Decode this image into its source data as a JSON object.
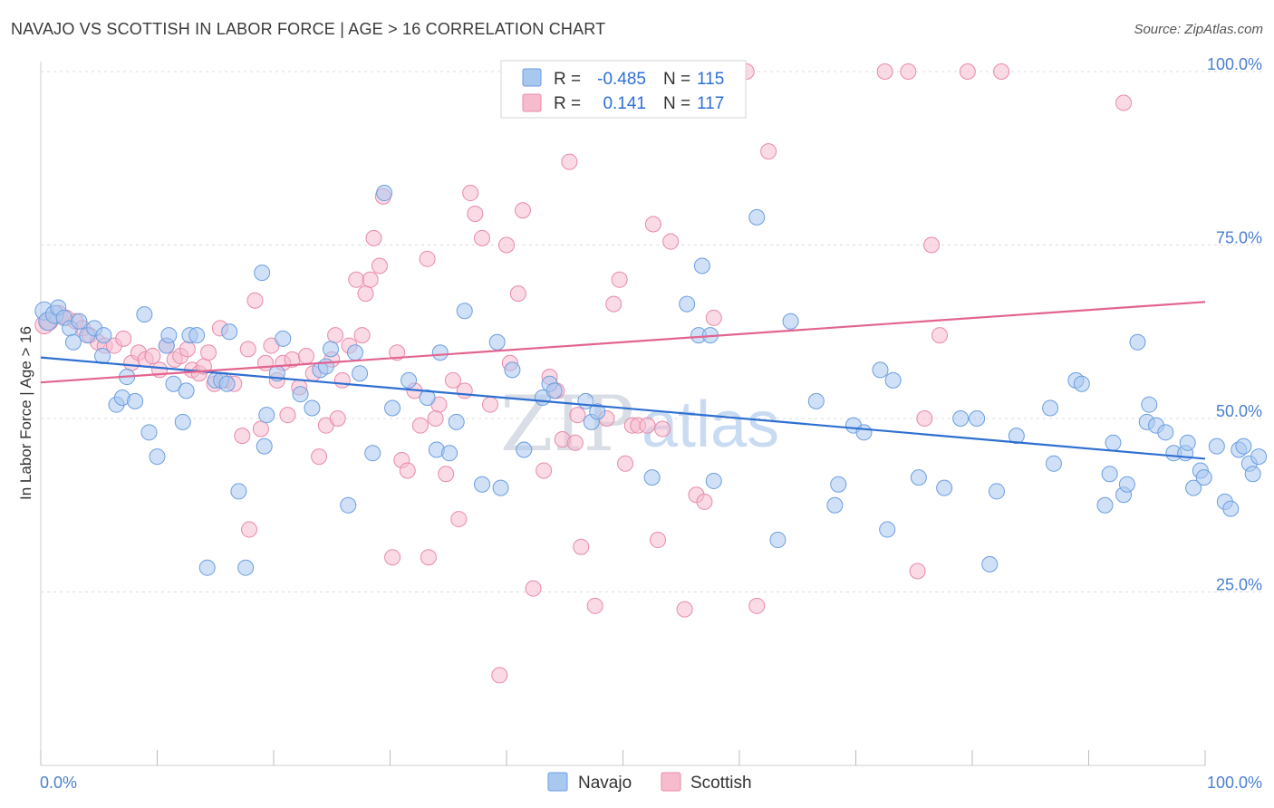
{
  "title": "NAVAJO VS SCOTTISH IN LABOR FORCE | AGE > 16 CORRELATION CHART",
  "source": "Source: ZipAtlas.com",
  "watermark": {
    "part1": "ZIP",
    "part2": "atlas"
  },
  "colors": {
    "navajo_fill": "#a9c8f0",
    "navajo_stroke": "#6b9ee0",
    "navajo_line": "#2e6fd1",
    "scottish_fill": "#f6bccd",
    "scottish_stroke": "#e98aa9",
    "scottish_line": "#e2648f",
    "grid": "#dcdcdc",
    "tick_label": "#4a7fd0"
  },
  "legend": {
    "navajo": {
      "r_label": "R =",
      "r_value": "-0.485",
      "n_label": "N =",
      "n_value": "115"
    },
    "scottish": {
      "r_label": "R =",
      "r_value": "0.141",
      "n_label": "N =",
      "n_value": "117"
    }
  },
  "bottom_legend": {
    "navajo": "Navajo",
    "scottish": "Scottish"
  },
  "chart_data": {
    "type": "scatter",
    "title": "NAVAJO VS SCOTTISH IN LABOR FORCE | AGE > 16 CORRELATION CHART",
    "xlabel": "",
    "ylabel": "In Labor Force | Age > 16",
    "xlim": [
      0,
      100
    ],
    "ylim": [
      0,
      103
    ],
    "x_tick_labels": [
      "0.0%",
      "100.0%"
    ],
    "y_ticks": [
      25,
      50,
      75,
      100
    ],
    "y_tick_labels": [
      "25.0%",
      "50.0%",
      "75.0%",
      "100.0%"
    ],
    "grid": true,
    "legend_position": "top-center",
    "series": [
      {
        "name": "Navajo",
        "R": -0.485,
        "N": 115,
        "trend": {
          "x": [
            0,
            100
          ],
          "y": [
            58.8,
            44.2
          ]
        },
        "points": [
          [
            0.3,
            65.5
          ],
          [
            0.6,
            64
          ],
          [
            1.2,
            65
          ],
          [
            1.5,
            66
          ],
          [
            2,
            64.5
          ],
          [
            2.5,
            63
          ],
          [
            2.8,
            61
          ],
          [
            3.3,
            64
          ],
          [
            4,
            62
          ],
          [
            4.6,
            63
          ],
          [
            5.3,
            59
          ],
          [
            5.4,
            62
          ],
          [
            7.4,
            56
          ],
          [
            6.5,
            52
          ],
          [
            7,
            53
          ],
          [
            8.1,
            52.5
          ],
          [
            8.9,
            65
          ],
          [
            9.3,
            48
          ],
          [
            10,
            44.5
          ],
          [
            10.8,
            60.5
          ],
          [
            11,
            62
          ],
          [
            11.4,
            55
          ],
          [
            12.2,
            49.5
          ],
          [
            12.5,
            54
          ],
          [
            12.8,
            62
          ],
          [
            13.4,
            62
          ],
          [
            14.3,
            28.5
          ],
          [
            15,
            55.5
          ],
          [
            15.5,
            55.5
          ],
          [
            16,
            55
          ],
          [
            16.2,
            62.5
          ],
          [
            17,
            39.5
          ],
          [
            17.6,
            28.5
          ],
          [
            19,
            71
          ],
          [
            19.2,
            46
          ],
          [
            19.4,
            50.5
          ],
          [
            20.3,
            56.5
          ],
          [
            20.8,
            61.5
          ],
          [
            22.3,
            53.5
          ],
          [
            23.3,
            51.5
          ],
          [
            24,
            57
          ],
          [
            24.5,
            57.5
          ],
          [
            24.9,
            60
          ],
          [
            26.4,
            37.5
          ],
          [
            27,
            59.5
          ],
          [
            27.4,
            56.5
          ],
          [
            28.5,
            45
          ],
          [
            29.5,
            82.5
          ],
          [
            31.6,
            55.5
          ],
          [
            33.2,
            53
          ],
          [
            34,
            45.5
          ],
          [
            34.3,
            59.5
          ],
          [
            35.1,
            45
          ],
          [
            35.7,
            49.5
          ],
          [
            36.4,
            65.5
          ],
          [
            37.9,
            40.5
          ],
          [
            39.2,
            61
          ],
          [
            40.5,
            57
          ],
          [
            41.5,
            45.5
          ],
          [
            43.1,
            53
          ],
          [
            43.7,
            55
          ],
          [
            44.1,
            54
          ],
          [
            47.3,
            49.5
          ],
          [
            47.8,
            51
          ],
          [
            56.5,
            62
          ],
          [
            56.8,
            72
          ],
          [
            57.8,
            41
          ],
          [
            61.5,
            79
          ],
          [
            63.3,
            32.5
          ],
          [
            64.4,
            64
          ],
          [
            66.6,
            52.5
          ],
          [
            68.2,
            37.5
          ],
          [
            68.5,
            40.5
          ],
          [
            69.8,
            49
          ],
          [
            70.7,
            48
          ],
          [
            72.1,
            57
          ],
          [
            72.7,
            34
          ],
          [
            73.2,
            55.5
          ],
          [
            75.4,
            41.5
          ],
          [
            77.6,
            40
          ],
          [
            79,
            50
          ],
          [
            80.4,
            50
          ],
          [
            81.5,
            29
          ],
          [
            82.1,
            39.5
          ],
          [
            83.8,
            47.5
          ],
          [
            86.7,
            51.5
          ],
          [
            87,
            43.5
          ],
          [
            88.9,
            55.5
          ],
          [
            89.4,
            55
          ],
          [
            91.4,
            37.5
          ],
          [
            91.8,
            42
          ],
          [
            92.1,
            46.5
          ],
          [
            93,
            39
          ],
          [
            93.3,
            40.5
          ],
          [
            94.2,
            61
          ],
          [
            95,
            49.5
          ],
          [
            95.2,
            52
          ],
          [
            95.8,
            49
          ],
          [
            96.6,
            48
          ],
          [
            97.3,
            45
          ],
          [
            98.3,
            45
          ],
          [
            98.5,
            46.5
          ],
          [
            99,
            40
          ],
          [
            99.6,
            42.5
          ],
          [
            99.9,
            41.5
          ],
          [
            101,
            46
          ],
          [
            101.7,
            38
          ],
          [
            102.2,
            37
          ],
          [
            102.9,
            45.5
          ],
          [
            103.3,
            46
          ],
          [
            103.8,
            43.5
          ],
          [
            104.1,
            42
          ],
          [
            104.6,
            44.5
          ],
          [
            55.5,
            66.5
          ],
          [
            52.5,
            41.5
          ],
          [
            57.5,
            62
          ],
          [
            46.8,
            52.5
          ],
          [
            39.5,
            40
          ],
          [
            30.2,
            51.5
          ]
        ]
      },
      {
        "name": "Scottish",
        "R": 0.141,
        "N": 117,
        "trend": {
          "x": [
            0,
            100
          ],
          "y": [
            55.2,
            66.8
          ]
        },
        "points": [
          [
            0.3,
            63.5
          ],
          [
            0.7,
            64
          ],
          [
            1.5,
            65
          ],
          [
            2.2,
            64.5
          ],
          [
            3,
            64
          ],
          [
            3.6,
            63
          ],
          [
            4.2,
            62
          ],
          [
            4.9,
            61
          ],
          [
            5.5,
            60.5
          ],
          [
            6.3,
            60.5
          ],
          [
            7.1,
            61.5
          ],
          [
            7.8,
            58
          ],
          [
            8.4,
            59.5
          ],
          [
            9,
            58.5
          ],
          [
            9.6,
            59
          ],
          [
            10.2,
            57
          ],
          [
            10.8,
            60.5
          ],
          [
            11.5,
            58.5
          ],
          [
            12,
            59
          ],
          [
            12.6,
            60
          ],
          [
            13,
            57
          ],
          [
            13.6,
            56.5
          ],
          [
            14,
            57.5
          ],
          [
            14.4,
            59.5
          ],
          [
            14.9,
            55
          ],
          [
            15.4,
            63
          ],
          [
            15.8,
            55.5
          ],
          [
            16.6,
            55
          ],
          [
            17.3,
            47.5
          ],
          [
            17.8,
            60
          ],
          [
            18.4,
            67
          ],
          [
            18.9,
            48.5
          ],
          [
            19.3,
            58
          ],
          [
            19.8,
            60.5
          ],
          [
            20.3,
            55.5
          ],
          [
            20.8,
            58
          ],
          [
            21.2,
            50.5
          ],
          [
            21.6,
            58.5
          ],
          [
            22.2,
            54.5
          ],
          [
            22.8,
            59
          ],
          [
            23.4,
            56.5
          ],
          [
            23.9,
            44.5
          ],
          [
            24.5,
            49
          ],
          [
            25,
            58.5
          ],
          [
            25.5,
            50
          ],
          [
            25.9,
            55.5
          ],
          [
            26.5,
            60.5
          ],
          [
            27.1,
            70
          ],
          [
            27.6,
            62
          ],
          [
            27.9,
            68
          ],
          [
            28.3,
            70
          ],
          [
            28.6,
            76
          ],
          [
            29.1,
            72
          ],
          [
            29.4,
            82
          ],
          [
            30.6,
            59.5
          ],
          [
            31,
            44
          ],
          [
            31.5,
            42.5
          ],
          [
            32.1,
            54
          ],
          [
            32.6,
            49
          ],
          [
            33.2,
            73
          ],
          [
            34.2,
            52
          ],
          [
            34.8,
            42
          ],
          [
            35.4,
            55.5
          ],
          [
            35.9,
            35.5
          ],
          [
            36.4,
            54
          ],
          [
            36.9,
            82.5
          ],
          [
            37.3,
            79.5
          ],
          [
            37.9,
            76
          ],
          [
            38.6,
            52
          ],
          [
            39.4,
            13
          ],
          [
            40,
            75
          ],
          [
            41,
            68
          ],
          [
            41.4,
            80
          ],
          [
            42.3,
            25.5
          ],
          [
            43.2,
            42.5
          ],
          [
            43.7,
            56
          ],
          [
            44.3,
            54
          ],
          [
            44.8,
            47
          ],
          [
            45.4,
            87
          ],
          [
            45.9,
            46.5
          ],
          [
            46.4,
            31.5
          ],
          [
            47.1,
            100
          ],
          [
            47.6,
            23
          ],
          [
            48.6,
            50
          ],
          [
            49.2,
            66.5
          ],
          [
            49.7,
            70
          ],
          [
            50.2,
            43.5
          ],
          [
            50.8,
            49
          ],
          [
            51.3,
            49
          ],
          [
            52.1,
            49
          ],
          [
            52.6,
            78
          ],
          [
            53,
            32.5
          ],
          [
            53.4,
            48.5
          ],
          [
            54.1,
            75.5
          ],
          [
            55.3,
            22.5
          ],
          [
            56.3,
            39
          ],
          [
            57,
            38
          ],
          [
            57.8,
            64.5
          ],
          [
            60.6,
            100
          ],
          [
            61.5,
            23
          ],
          [
            62.5,
            88.5
          ],
          [
            72.5,
            100
          ],
          [
            74.5,
            100
          ],
          [
            75.3,
            28
          ],
          [
            75.9,
            50
          ],
          [
            76.5,
            75
          ],
          [
            77.2,
            62
          ],
          [
            79.6,
            100
          ],
          [
            82.5,
            100
          ],
          [
            93,
            95.5
          ],
          [
            25.3,
            62
          ],
          [
            33.9,
            50
          ],
          [
            40.3,
            58
          ],
          [
            46.1,
            50.5
          ],
          [
            30.2,
            30
          ],
          [
            33.3,
            30
          ],
          [
            17.9,
            34
          ]
        ]
      }
    ]
  }
}
